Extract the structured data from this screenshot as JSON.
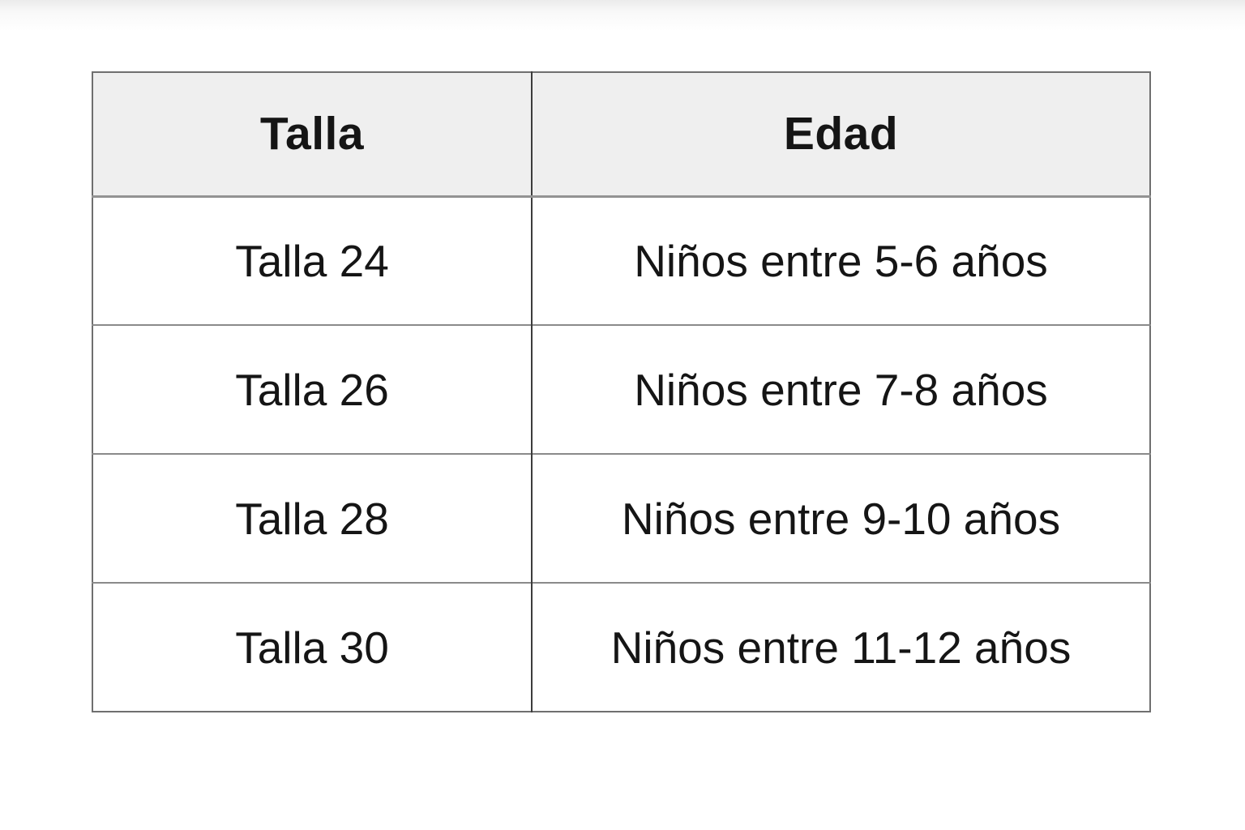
{
  "page": {
    "background_color": "#ffffff",
    "top_fade_color": "#ebebeb"
  },
  "table": {
    "header_bg": "#efefef",
    "column_divider_color": "#3c3c3c",
    "row_divider_color": "#8a8a8a",
    "outer_border_color": "#6f6f6f",
    "text_color": "#151515",
    "columns": [
      "Talla",
      "Edad"
    ],
    "rows": [
      {
        "talla": "Talla 24",
        "edad": "Niños entre 5-6 años"
      },
      {
        "talla": "Talla 26",
        "edad": "Niños entre 7-8 años"
      },
      {
        "talla": "Talla 28",
        "edad": "Niños entre 9-10 años"
      },
      {
        "talla": "Talla 30",
        "edad": "Niños entre 11-12 años"
      }
    ]
  }
}
